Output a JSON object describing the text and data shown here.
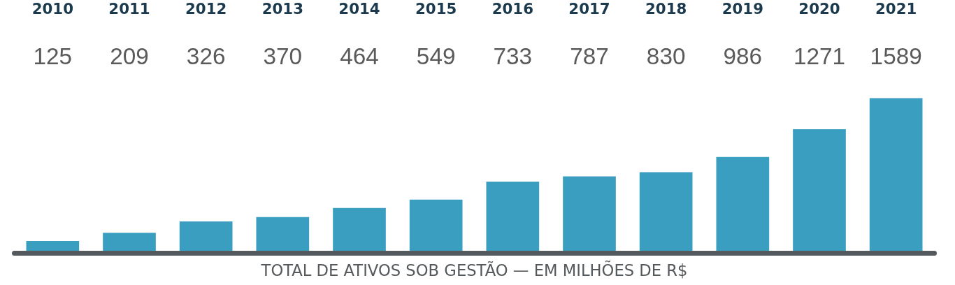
{
  "chart_data": {
    "type": "bar",
    "title": "TOTAL DE ATIVOS SOB GESTÃO — EM MILHÕES DE R$",
    "categories": [
      "2010",
      "2011",
      "2012",
      "2013",
      "2014",
      "2015",
      "2016",
      "2017",
      "2018",
      "2019",
      "2020",
      "2021"
    ],
    "values": [
      125,
      209,
      326,
      370,
      464,
      549,
      733,
      787,
      830,
      986,
      1271,
      1589
    ],
    "color": "#3a9ec0",
    "data_labels": true,
    "tick_labels": "x",
    "grid": false
  }
}
